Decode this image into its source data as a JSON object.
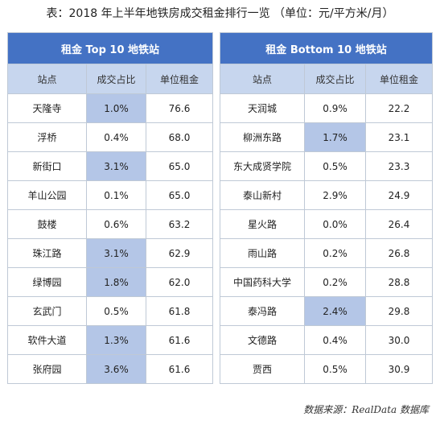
{
  "title": "表：2018 年上半年地铁房成交租金排行一览 （单位：元/平方米/月）",
  "top": {
    "header": "租金 Top 10 地铁站",
    "columns": [
      "站点",
      "成交占比",
      "单位租金"
    ],
    "rows": [
      {
        "station": "天隆寺",
        "share": "1.0%",
        "rent": "76.6",
        "highlight": true
      },
      {
        "station": "浮桥",
        "share": "0.4%",
        "rent": "68.0",
        "highlight": false
      },
      {
        "station": "新街口",
        "share": "3.1%",
        "rent": "65.0",
        "highlight": true
      },
      {
        "station": "羊山公园",
        "share": "0.1%",
        "rent": "65.0",
        "highlight": false
      },
      {
        "station": "鼓楼",
        "share": "0.6%",
        "rent": "63.2",
        "highlight": false
      },
      {
        "station": "珠江路",
        "share": "3.1%",
        "rent": "62.9",
        "highlight": true
      },
      {
        "station": "绿博园",
        "share": "1.8%",
        "rent": "62.0",
        "highlight": true
      },
      {
        "station": "玄武门",
        "share": "0.5%",
        "rent": "61.8",
        "highlight": false
      },
      {
        "station": "软件大道",
        "share": "1.3%",
        "rent": "61.6",
        "highlight": true
      },
      {
        "station": "张府园",
        "share": "3.6%",
        "rent": "61.6",
        "highlight": true
      }
    ]
  },
  "bottom": {
    "header": "租金 Bottom 10 地铁站",
    "columns": [
      "站点",
      "成交占比",
      "单位租金"
    ],
    "rows": [
      {
        "station": "天润城",
        "share": "0.9%",
        "rent": "22.2",
        "highlight": false
      },
      {
        "station": "柳洲东路",
        "share": "1.7%",
        "rent": "23.1",
        "highlight": true
      },
      {
        "station": "东大成贤学院",
        "share": "0.5%",
        "rent": "23.3",
        "highlight": false
      },
      {
        "station": "泰山新村",
        "share": "2.9%",
        "rent": "24.9",
        "highlight": false
      },
      {
        "station": "星火路",
        "share": "0.0%",
        "rent": "26.4",
        "highlight": false
      },
      {
        "station": "雨山路",
        "share": "0.2%",
        "rent": "26.8",
        "highlight": false
      },
      {
        "station": "中国药科大学",
        "share": "0.2%",
        "rent": "28.8",
        "highlight": false
      },
      {
        "station": "泰冯路",
        "share": "2.4%",
        "rent": "29.8",
        "highlight": true
      },
      {
        "station": "文德路",
        "share": "0.4%",
        "rent": "30.0",
        "highlight": false
      },
      {
        "station": "贾西",
        "share": "0.5%",
        "rent": "30.9",
        "highlight": false
      }
    ]
  },
  "source": "数据来源：RealData 数据库"
}
